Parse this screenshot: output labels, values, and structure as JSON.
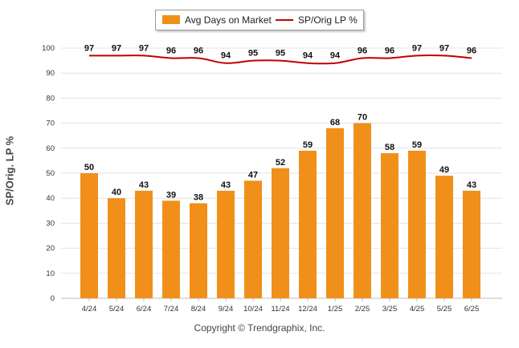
{
  "legend": {
    "bar_label": "Avg Days on Market",
    "line_label": "SP/Orig LP %"
  },
  "copyright": "Copyright © Trendgraphix, Inc.",
  "colors": {
    "bar": "#f0901a",
    "line": "#c00000",
    "grid": "#e3e3e3"
  },
  "chart_data": {
    "type": "bar",
    "categories": [
      "4/24",
      "5/24",
      "6/24",
      "7/24",
      "8/24",
      "9/24",
      "10/24",
      "11/24",
      "12/24",
      "1/25",
      "2/25",
      "3/25",
      "4/25",
      "5/25",
      "6/25"
    ],
    "series": [
      {
        "name": "Avg Days on Market",
        "type": "bar",
        "values": [
          50,
          40,
          43,
          39,
          38,
          43,
          47,
          52,
          59,
          68,
          70,
          58,
          59,
          49,
          43
        ]
      },
      {
        "name": "SP/Orig LP %",
        "type": "line",
        "values": [
          97,
          97,
          97,
          96,
          96,
          94,
          95,
          95,
          94,
          94,
          96,
          96,
          97,
          97,
          96
        ]
      }
    ],
    "ylabel": "SP/Orig. LP %",
    "xlabel": "",
    "ylim": [
      0,
      100
    ],
    "yticks": [
      0,
      10,
      20,
      30,
      40,
      50,
      60,
      70,
      80,
      90,
      100
    ],
    "grid": true,
    "legend_position": "top-center"
  }
}
